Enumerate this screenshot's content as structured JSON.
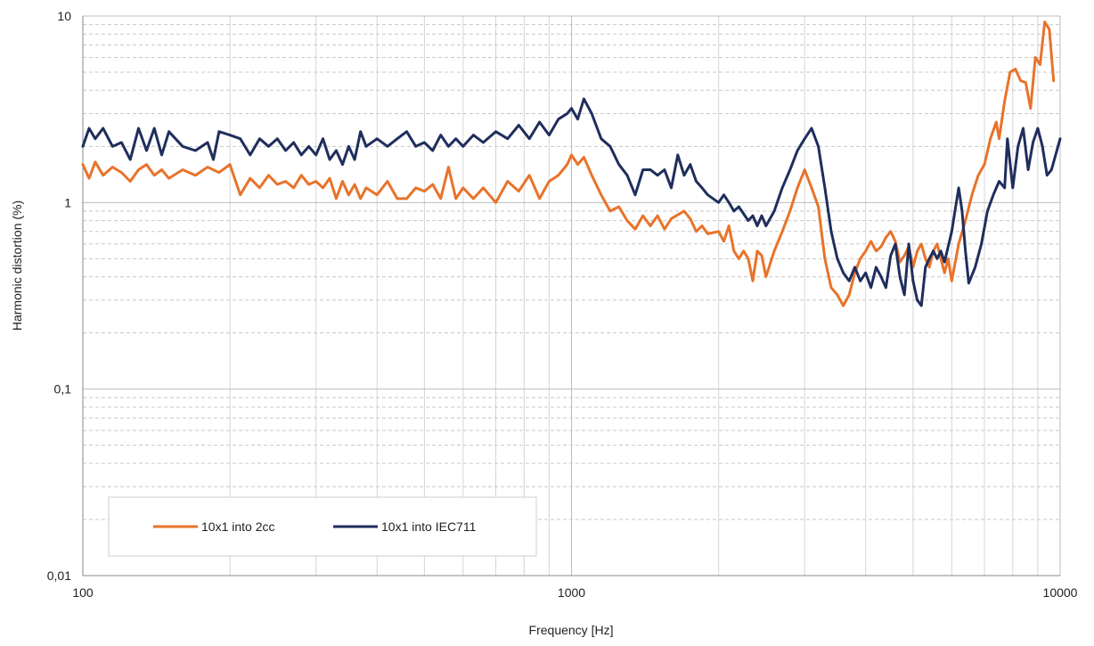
{
  "chart_data": {
    "type": "line",
    "title": "",
    "xlabel": "Frequency [Hz]",
    "ylabel": "Harmonic distortion (%)",
    "x_scale": "log",
    "y_scale": "log",
    "xlim": [
      100,
      10000
    ],
    "ylim": [
      0.01,
      10
    ],
    "x_ticks": [
      {
        "value": 100,
        "label": "100"
      },
      {
        "value": 1000,
        "label": "1000"
      },
      {
        "value": 10000,
        "label": "10000"
      }
    ],
    "y_ticks": [
      {
        "value": 10,
        "label": "10"
      },
      {
        "value": 1,
        "label": "1"
      },
      {
        "value": 0.1,
        "label": "0,1"
      },
      {
        "value": 0.01,
        "label": "0,01"
      }
    ],
    "grid": true,
    "legend_position": "bottom-left",
    "series": [
      {
        "name": "10x1 into 2cc",
        "color": "#E8732A",
        "points": [
          [
            100,
            1.6
          ],
          [
            103,
            1.35
          ],
          [
            106,
            1.65
          ],
          [
            110,
            1.4
          ],
          [
            115,
            1.55
          ],
          [
            120,
            1.45
          ],
          [
            125,
            1.3
          ],
          [
            130,
            1.5
          ],
          [
            135,
            1.6
          ],
          [
            140,
            1.4
          ],
          [
            145,
            1.5
          ],
          [
            150,
            1.35
          ],
          [
            160,
            1.5
          ],
          [
            170,
            1.4
          ],
          [
            180,
            1.55
          ],
          [
            190,
            1.45
          ],
          [
            200,
            1.6
          ],
          [
            210,
            1.1
          ],
          [
            220,
            1.35
          ],
          [
            230,
            1.2
          ],
          [
            240,
            1.4
          ],
          [
            250,
            1.25
          ],
          [
            260,
            1.3
          ],
          [
            270,
            1.2
          ],
          [
            280,
            1.4
          ],
          [
            290,
            1.25
          ],
          [
            300,
            1.3
          ],
          [
            310,
            1.2
          ],
          [
            320,
            1.35
          ],
          [
            330,
            1.05
          ],
          [
            340,
            1.3
          ],
          [
            350,
            1.1
          ],
          [
            360,
            1.25
          ],
          [
            370,
            1.05
          ],
          [
            380,
            1.2
          ],
          [
            400,
            1.1
          ],
          [
            420,
            1.3
          ],
          [
            440,
            1.05
          ],
          [
            460,
            1.05
          ],
          [
            480,
            1.2
          ],
          [
            500,
            1.15
          ],
          [
            520,
            1.25
          ],
          [
            540,
            1.05
          ],
          [
            560,
            1.55
          ],
          [
            580,
            1.05
          ],
          [
            600,
            1.2
          ],
          [
            630,
            1.05
          ],
          [
            660,
            1.2
          ],
          [
            700,
            1.0
          ],
          [
            740,
            1.3
          ],
          [
            780,
            1.15
          ],
          [
            820,
            1.4
          ],
          [
            860,
            1.05
          ],
          [
            900,
            1.3
          ],
          [
            940,
            1.4
          ],
          [
            980,
            1.6
          ],
          [
            1000,
            1.8
          ],
          [
            1030,
            1.6
          ],
          [
            1060,
            1.75
          ],
          [
            1100,
            1.4
          ],
          [
            1150,
            1.1
          ],
          [
            1200,
            0.9
          ],
          [
            1250,
            0.95
          ],
          [
            1300,
            0.8
          ],
          [
            1350,
            0.72
          ],
          [
            1400,
            0.85
          ],
          [
            1450,
            0.75
          ],
          [
            1500,
            0.85
          ],
          [
            1550,
            0.72
          ],
          [
            1600,
            0.82
          ],
          [
            1700,
            0.9
          ],
          [
            1750,
            0.82
          ],
          [
            1800,
            0.7
          ],
          [
            1850,
            0.75
          ],
          [
            1900,
            0.68
          ],
          [
            2000,
            0.7
          ],
          [
            2050,
            0.62
          ],
          [
            2100,
            0.75
          ],
          [
            2150,
            0.55
          ],
          [
            2200,
            0.5
          ],
          [
            2250,
            0.55
          ],
          [
            2300,
            0.5
          ],
          [
            2350,
            0.38
          ],
          [
            2400,
            0.55
          ],
          [
            2450,
            0.52
          ],
          [
            2500,
            0.4
          ],
          [
            2600,
            0.55
          ],
          [
            2700,
            0.7
          ],
          [
            2800,
            0.9
          ],
          [
            2900,
            1.2
          ],
          [
            3000,
            1.5
          ],
          [
            3100,
            1.2
          ],
          [
            3200,
            0.95
          ],
          [
            3300,
            0.5
          ],
          [
            3400,
            0.35
          ],
          [
            3500,
            0.32
          ],
          [
            3600,
            0.28
          ],
          [
            3700,
            0.32
          ],
          [
            3800,
            0.42
          ],
          [
            3900,
            0.5
          ],
          [
            4000,
            0.55
          ],
          [
            4100,
            0.62
          ],
          [
            4200,
            0.55
          ],
          [
            4300,
            0.58
          ],
          [
            4400,
            0.65
          ],
          [
            4500,
            0.7
          ],
          [
            4600,
            0.62
          ],
          [
            4700,
            0.48
          ],
          [
            4800,
            0.52
          ],
          [
            4900,
            0.58
          ],
          [
            5000,
            0.45
          ],
          [
            5100,
            0.55
          ],
          [
            5200,
            0.6
          ],
          [
            5300,
            0.5
          ],
          [
            5400,
            0.45
          ],
          [
            5500,
            0.55
          ],
          [
            5600,
            0.6
          ],
          [
            5700,
            0.5
          ],
          [
            5800,
            0.42
          ],
          [
            5900,
            0.5
          ],
          [
            6000,
            0.38
          ],
          [
            6200,
            0.6
          ],
          [
            6400,
            0.8
          ],
          [
            6600,
            1.1
          ],
          [
            6800,
            1.4
          ],
          [
            7000,
            1.6
          ],
          [
            7200,
            2.2
          ],
          [
            7400,
            2.7
          ],
          [
            7500,
            2.2
          ],
          [
            7700,
            3.5
          ],
          [
            7900,
            5.0
          ],
          [
            8100,
            5.2
          ],
          [
            8300,
            4.5
          ],
          [
            8500,
            4.4
          ],
          [
            8700,
            3.2
          ],
          [
            8900,
            6.0
          ],
          [
            9100,
            5.5
          ],
          [
            9300,
            9.3
          ],
          [
            9500,
            8.5
          ],
          [
            9700,
            4.5
          ]
        ]
      },
      {
        "name": "10x1 into IEC711",
        "color": "#1F2E5C",
        "points": [
          [
            100,
            2.0
          ],
          [
            103,
            2.5
          ],
          [
            106,
            2.2
          ],
          [
            110,
            2.5
          ],
          [
            115,
            2.0
          ],
          [
            120,
            2.1
          ],
          [
            125,
            1.7
          ],
          [
            130,
            2.5
          ],
          [
            135,
            1.9
          ],
          [
            140,
            2.5
          ],
          [
            145,
            1.8
          ],
          [
            150,
            2.4
          ],
          [
            160,
            2.0
          ],
          [
            170,
            1.9
          ],
          [
            180,
            2.1
          ],
          [
            185,
            1.7
          ],
          [
            190,
            2.4
          ],
          [
            200,
            2.3
          ],
          [
            210,
            2.2
          ],
          [
            220,
            1.8
          ],
          [
            230,
            2.2
          ],
          [
            240,
            2.0
          ],
          [
            250,
            2.2
          ],
          [
            260,
            1.9
          ],
          [
            270,
            2.1
          ],
          [
            280,
            1.8
          ],
          [
            290,
            2.0
          ],
          [
            300,
            1.8
          ],
          [
            310,
            2.2
          ],
          [
            320,
            1.7
          ],
          [
            330,
            1.9
          ],
          [
            340,
            1.6
          ],
          [
            350,
            2.0
          ],
          [
            360,
            1.7
          ],
          [
            370,
            2.4
          ],
          [
            380,
            2.0
          ],
          [
            400,
            2.2
          ],
          [
            420,
            2.0
          ],
          [
            440,
            2.2
          ],
          [
            460,
            2.4
          ],
          [
            480,
            2.0
          ],
          [
            500,
            2.1
          ],
          [
            520,
            1.9
          ],
          [
            540,
            2.3
          ],
          [
            560,
            2.0
          ],
          [
            580,
            2.2
          ],
          [
            600,
            2.0
          ],
          [
            630,
            2.3
          ],
          [
            660,
            2.1
          ],
          [
            700,
            2.4
          ],
          [
            740,
            2.2
          ],
          [
            780,
            2.6
          ],
          [
            820,
            2.2
          ],
          [
            860,
            2.7
          ],
          [
            900,
            2.3
          ],
          [
            940,
            2.8
          ],
          [
            980,
            3.0
          ],
          [
            1000,
            3.2
          ],
          [
            1030,
            2.8
          ],
          [
            1060,
            3.6
          ],
          [
            1100,
            3.0
          ],
          [
            1150,
            2.2
          ],
          [
            1200,
            2.0
          ],
          [
            1250,
            1.6
          ],
          [
            1300,
            1.4
          ],
          [
            1350,
            1.1
          ],
          [
            1400,
            1.5
          ],
          [
            1450,
            1.5
          ],
          [
            1500,
            1.4
          ],
          [
            1550,
            1.5
          ],
          [
            1600,
            1.2
          ],
          [
            1650,
            1.8
          ],
          [
            1700,
            1.4
          ],
          [
            1750,
            1.6
          ],
          [
            1800,
            1.3
          ],
          [
            1850,
            1.2
          ],
          [
            1900,
            1.1
          ],
          [
            2000,
            1.0
          ],
          [
            2050,
            1.1
          ],
          [
            2100,
            1.0
          ],
          [
            2150,
            0.9
          ],
          [
            2200,
            0.95
          ],
          [
            2300,
            0.8
          ],
          [
            2350,
            0.85
          ],
          [
            2400,
            0.75
          ],
          [
            2450,
            0.85
          ],
          [
            2500,
            0.75
          ],
          [
            2600,
            0.9
          ],
          [
            2700,
            1.2
          ],
          [
            2800,
            1.5
          ],
          [
            2900,
            1.9
          ],
          [
            3000,
            2.2
          ],
          [
            3100,
            2.5
          ],
          [
            3200,
            2.0
          ],
          [
            3300,
            1.2
          ],
          [
            3400,
            0.7
          ],
          [
            3500,
            0.5
          ],
          [
            3600,
            0.42
          ],
          [
            3700,
            0.38
          ],
          [
            3800,
            0.45
          ],
          [
            3900,
            0.38
          ],
          [
            4000,
            0.42
          ],
          [
            4100,
            0.35
          ],
          [
            4200,
            0.45
          ],
          [
            4300,
            0.4
          ],
          [
            4400,
            0.35
          ],
          [
            4500,
            0.52
          ],
          [
            4600,
            0.6
          ],
          [
            4700,
            0.4
          ],
          [
            4800,
            0.32
          ],
          [
            4900,
            0.6
          ],
          [
            5000,
            0.38
          ],
          [
            5100,
            0.3
          ],
          [
            5200,
            0.28
          ],
          [
            5300,
            0.45
          ],
          [
            5400,
            0.5
          ],
          [
            5500,
            0.55
          ],
          [
            5600,
            0.5
          ],
          [
            5700,
            0.55
          ],
          [
            5800,
            0.48
          ],
          [
            6000,
            0.7
          ],
          [
            6200,
            1.2
          ],
          [
            6300,
            0.9
          ],
          [
            6400,
            0.55
          ],
          [
            6500,
            0.37
          ],
          [
            6700,
            0.45
          ],
          [
            6900,
            0.6
          ],
          [
            7100,
            0.9
          ],
          [
            7300,
            1.1
          ],
          [
            7500,
            1.3
          ],
          [
            7700,
            1.2
          ],
          [
            7800,
            2.2
          ],
          [
            8000,
            1.2
          ],
          [
            8200,
            2.0
          ],
          [
            8400,
            2.5
          ],
          [
            8600,
            1.5
          ],
          [
            8800,
            2.1
          ],
          [
            9000,
            2.5
          ],
          [
            9200,
            2.0
          ],
          [
            9400,
            1.4
          ],
          [
            9600,
            1.5
          ],
          [
            10000,
            2.2
          ]
        ]
      }
    ]
  }
}
